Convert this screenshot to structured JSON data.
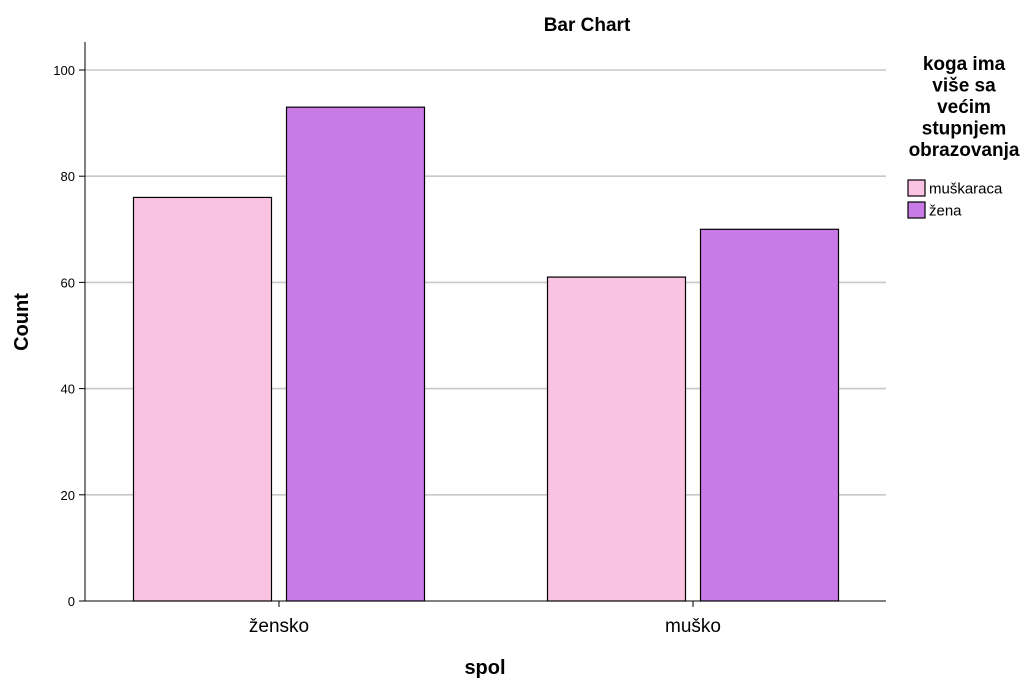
{
  "chart_data": {
    "type": "bar",
    "title": "Bar Chart",
    "xlabel": "spol",
    "ylabel": "Count",
    "categories": [
      "žensko",
      "muško"
    ],
    "series": [
      {
        "name": "muškaraca",
        "values": [
          76,
          61
        ],
        "color": "#fbc3e2"
      },
      {
        "name": "žena",
        "values": [
          93,
          70
        ],
        "color": "#c87be6"
      }
    ],
    "ylim": [
      0,
      105
    ],
    "yticks": [
      0,
      20,
      40,
      60,
      80,
      100
    ],
    "grid": true,
    "legend": {
      "title_lines": [
        "koga ima",
        "više sa",
        "većim",
        "stupnjem",
        "obrazovanja"
      ],
      "position": "right"
    }
  }
}
